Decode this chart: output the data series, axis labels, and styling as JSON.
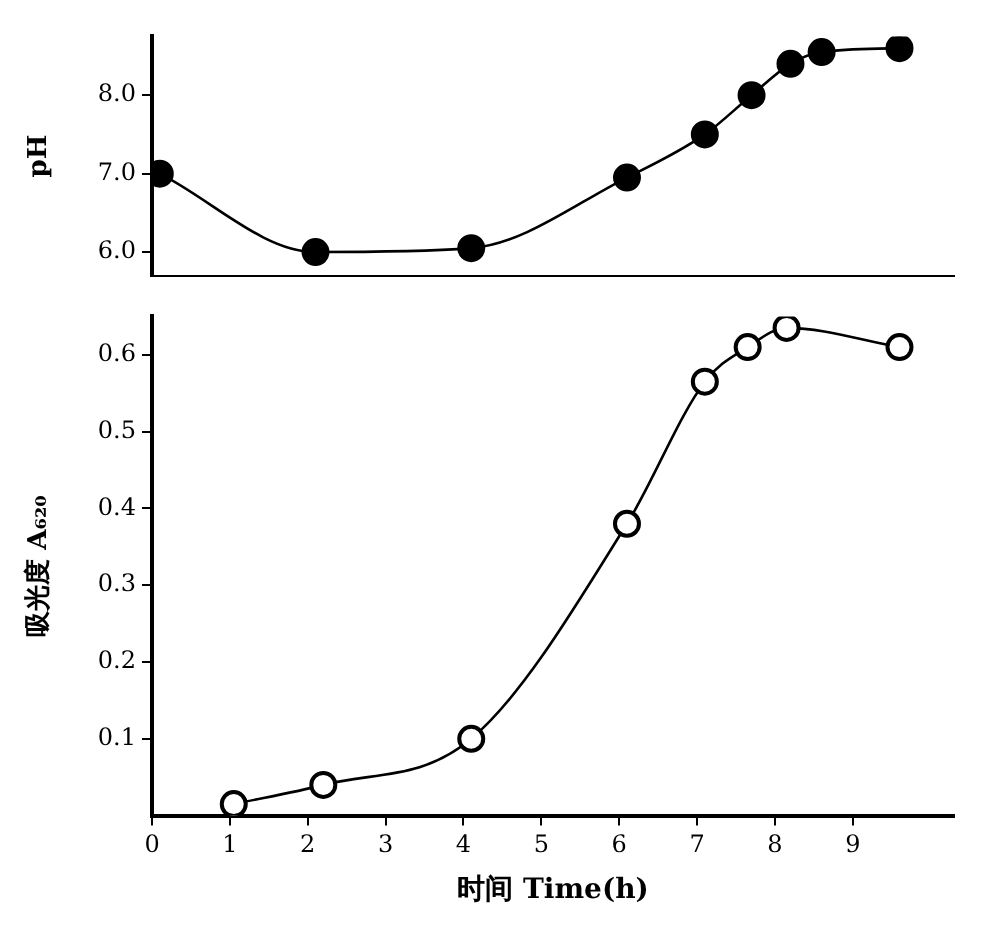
{
  "chart_data": [
    {
      "type": "line",
      "ylabel": "pH",
      "xlim": [
        0,
        10.3
      ],
      "xticks": [
        0,
        1,
        2,
        3,
        4,
        5,
        6,
        7,
        8,
        9
      ],
      "ylim": [
        5.7,
        8.75
      ],
      "yticks": [
        {
          "value": 6,
          "label": "6.0"
        },
        {
          "value": 7,
          "label": "7.0"
        },
        {
          "value": 8,
          "label": "8.0"
        }
      ],
      "tick_labels": "y",
      "grid": false,
      "legend": false,
      "marker": "circle",
      "line_style": "solid",
      "series": [
        {
          "color": "#000000",
          "x": [
            0.1,
            2.1,
            4.1,
            6.1,
            7.1,
            7.7,
            8.2,
            8.6,
            9.6
          ],
          "values": [
            7.0,
            6.0,
            6.05,
            6.95,
            7.5,
            8.0,
            8.4,
            8.55,
            8.6
          ]
        }
      ]
    },
    {
      "type": "line",
      "xlabel": "时间 Time(h)",
      "ylabel": "吸光度 A₆₂₀",
      "xlim": [
        0,
        10.3
      ],
      "xticks": [
        0,
        1,
        2,
        3,
        4,
        5,
        6,
        7,
        8,
        9
      ],
      "ylim": [
        0,
        0.65
      ],
      "yticks": [
        {
          "value": 0.1,
          "label": "0.1"
        },
        {
          "value": 0.2,
          "label": "0.2"
        },
        {
          "value": 0.3,
          "label": "0.3"
        },
        {
          "value": 0.4,
          "label": "0.4"
        },
        {
          "value": 0.5,
          "label": "0.5"
        },
        {
          "value": 0.6,
          "label": "0.6"
        }
      ],
      "grid": false,
      "legend": false,
      "marker": "circle",
      "line_style": "solid",
      "series": [
        {
          "color": "#000000",
          "x": [
            1.05,
            2.2,
            4.1,
            6.1,
            7.1,
            7.65,
            8.15,
            9.6
          ],
          "values": [
            0.015,
            0.04,
            0.1,
            0.38,
            0.565,
            0.61,
            0.635,
            0.61
          ]
        }
      ]
    }
  ]
}
